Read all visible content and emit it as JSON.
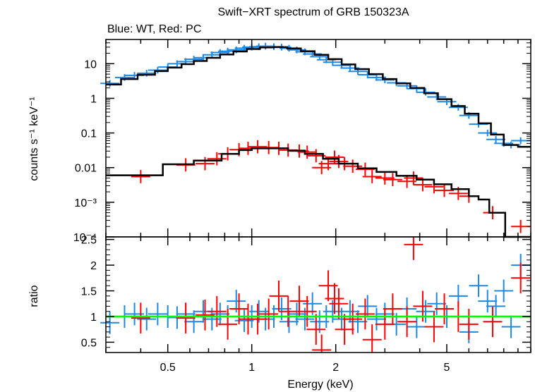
{
  "chart_data": {
    "type": "scatter",
    "title": "Swift−XRT spectrum of GRB 150323A",
    "subtitle": "Blue: WT, Red: PC",
    "xlabel": "Energy (keV)",
    "x_scale": "log",
    "xlim": [
      0.3,
      10.0
    ],
    "x_ticks": [
      {
        "v": 0.5,
        "label": "0.5"
      },
      {
        "v": 1,
        "label": "1"
      },
      {
        "v": 2,
        "label": "2"
      },
      {
        "v": 5,
        "label": "5"
      }
    ],
    "colors": {
      "wt": "#1e88e5",
      "pc": "#ff0000",
      "model": "#000000",
      "unity": "#00ff00"
    },
    "top_panel": {
      "ylabel": "counts s⁻¹ keV⁻¹",
      "y_scale": "log",
      "ylim": [
        0.0001,
        50
      ],
      "y_ticks": [
        {
          "v": 10,
          "label": "10"
        },
        {
          "v": 1,
          "label": "1"
        },
        {
          "v": 0.1,
          "label": "0.1"
        },
        {
          "v": 0.01,
          "label": "0.01"
        },
        {
          "v": 0.001,
          "label": "10⁻³"
        },
        {
          "v": 0.0001,
          "label": "10⁻⁴"
        }
      ],
      "series": [
        {
          "key": "wt",
          "points": [
            [
              0.31,
              2.7
            ],
            [
              0.35,
              4.0
            ],
            [
              0.38,
              4.6
            ],
            [
              0.42,
              5.3
            ],
            [
              0.46,
              6.5
            ],
            [
              0.5,
              8.0
            ],
            [
              0.54,
              10
            ],
            [
              0.58,
              11.5
            ],
            [
              0.62,
              13.5
            ],
            [
              0.67,
              15
            ],
            [
              0.72,
              18
            ],
            [
              0.77,
              21
            ],
            [
              0.82,
              23
            ],
            [
              0.88,
              25
            ],
            [
              0.94,
              28
            ],
            [
              1.0,
              30
            ],
            [
              1.06,
              31
            ],
            [
              1.12,
              32
            ],
            [
              1.2,
              31
            ],
            [
              1.28,
              30
            ],
            [
              1.36,
              28
            ],
            [
              1.45,
              25
            ],
            [
              1.55,
              22
            ],
            [
              1.65,
              19
            ],
            [
              1.75,
              16
            ],
            [
              1.85,
              13
            ],
            [
              1.95,
              11
            ],
            [
              2.1,
              9
            ],
            [
              2.25,
              7.5
            ],
            [
              2.4,
              6.0
            ],
            [
              2.6,
              4.8
            ],
            [
              2.8,
              4.0
            ],
            [
              3.0,
              3.4
            ],
            [
              3.3,
              2.8
            ],
            [
              3.6,
              2.3
            ],
            [
              3.9,
              1.9
            ],
            [
              4.2,
              1.5
            ],
            [
              4.6,
              1.1
            ],
            [
              5.0,
              0.8
            ],
            [
              5.5,
              0.55
            ],
            [
              6.0,
              0.32
            ],
            [
              6.5,
              0.18
            ],
            [
              7.0,
              0.1
            ],
            [
              7.5,
              0.065
            ],
            [
              8.0,
              0.05
            ],
            [
              8.5,
              0.045
            ],
            [
              9.2,
              0.06
            ]
          ]
        },
        {
          "key": "pc",
          "points": [
            [
              0.4,
              0.0055
            ],
            [
              0.58,
              0.012
            ],
            [
              0.68,
              0.013
            ],
            [
              0.75,
              0.018
            ],
            [
              0.82,
              0.025
            ],
            [
              0.9,
              0.033
            ],
            [
              0.97,
              0.036
            ],
            [
              1.05,
              0.04
            ],
            [
              1.15,
              0.038
            ],
            [
              1.25,
              0.036
            ],
            [
              1.35,
              0.032
            ],
            [
              1.48,
              0.03
            ],
            [
              1.58,
              0.028
            ],
            [
              1.7,
              0.022
            ],
            [
              1.78,
              0.01
            ],
            [
              1.88,
              0.013
            ],
            [
              1.98,
              0.02
            ],
            [
              2.05,
              0.015
            ],
            [
              2.15,
              0.013
            ],
            [
              2.3,
              0.011
            ],
            [
              2.55,
              0.009
            ],
            [
              2.7,
              0.0055
            ],
            [
              3.0,
              0.005
            ],
            [
              3.2,
              0.0045
            ],
            [
              3.6,
              0.004
            ],
            [
              3.8,
              0.005
            ],
            [
              4.1,
              0.0032
            ],
            [
              4.5,
              0.0028
            ],
            [
              4.9,
              0.0022
            ],
            [
              5.5,
              0.0018
            ],
            [
              6.0,
              0.0015
            ],
            [
              7.3,
              0.0005
            ],
            [
              9.2,
              0.0002
            ]
          ]
        }
      ],
      "models": [
        {
          "key": "wt",
          "steps": [
            [
              0.3,
              2.5
            ],
            [
              0.34,
              3.6
            ],
            [
              0.39,
              4.8
            ],
            [
              0.45,
              6.1
            ],
            [
              0.5,
              7.7
            ],
            [
              0.56,
              9.7
            ],
            [
              0.62,
              12.0
            ],
            [
              0.69,
              14.8
            ],
            [
              0.77,
              18.5
            ],
            [
              0.86,
              22.5
            ],
            [
              0.96,
              26.5
            ],
            [
              1.07,
              29.5
            ],
            [
              1.2,
              30.0
            ],
            [
              1.34,
              27.5
            ],
            [
              1.5,
              23.0
            ],
            [
              1.68,
              18.0
            ],
            [
              1.88,
              13.5
            ],
            [
              2.1,
              9.5
            ],
            [
              2.35,
              7.0
            ],
            [
              2.63,
              5.0
            ],
            [
              2.95,
              3.6
            ],
            [
              3.3,
              2.7
            ],
            [
              3.7,
              2.0
            ],
            [
              4.15,
              1.4
            ],
            [
              4.65,
              0.95
            ],
            [
              5.2,
              0.6
            ],
            [
              5.8,
              0.36
            ],
            [
              6.5,
              0.19
            ],
            [
              7.2,
              0.09
            ],
            [
              8.0,
              0.045
            ],
            [
              9.0,
              0.04
            ],
            [
              10.0,
              0.04
            ]
          ]
        },
        {
          "key": "pc",
          "steps": [
            [
              0.3,
              0.006
            ],
            [
              0.48,
              0.0125
            ],
            [
              0.62,
              0.016
            ],
            [
              0.78,
              0.025
            ],
            [
              0.9,
              0.032
            ],
            [
              1.0,
              0.036
            ],
            [
              1.15,
              0.036
            ],
            [
              1.35,
              0.031
            ],
            [
              1.55,
              0.025
            ],
            [
              1.8,
              0.018
            ],
            [
              2.05,
              0.013
            ],
            [
              2.4,
              0.0095
            ],
            [
              2.8,
              0.0075
            ],
            [
              3.3,
              0.0058
            ],
            [
              3.9,
              0.0045
            ],
            [
              4.5,
              0.0033
            ],
            [
              5.2,
              0.0024
            ],
            [
              6.0,
              0.0015
            ],
            [
              6.5,
              0.0012
            ],
            [
              7.1,
              0.0005
            ],
            [
              8.1,
              0.0001
            ],
            [
              10.0,
              0.0001
            ]
          ]
        }
      ]
    },
    "bottom_panel": {
      "ylabel": "ratio",
      "y_scale": "linear",
      "ylim": [
        0.3,
        2.55
      ],
      "y_ticks": [
        {
          "v": 0.5,
          "label": "0.5"
        },
        {
          "v": 1,
          "label": "1"
        },
        {
          "v": 1.5,
          "label": "1.5"
        },
        {
          "v": 2,
          "label": "2"
        },
        {
          "v": 2.5,
          "label": "2.5"
        }
      ],
      "reference_line": 1.0,
      "series": [
        {
          "key": "wt",
          "points": [
            [
              0.31,
              0.88
            ],
            [
              0.35,
              1.0
            ],
            [
              0.38,
              1.05
            ],
            [
              0.42,
              0.95
            ],
            [
              0.46,
              1.05
            ],
            [
              0.5,
              1.0
            ],
            [
              0.54,
              0.98
            ],
            [
              0.58,
              1.05
            ],
            [
              0.62,
              0.9
            ],
            [
              0.67,
              1.1
            ],
            [
              0.72,
              0.95
            ],
            [
              0.77,
              1.05
            ],
            [
              0.82,
              1.0
            ],
            [
              0.88,
              1.3
            ],
            [
              0.94,
              0.92
            ],
            [
              1.0,
              1.0
            ],
            [
              1.06,
              1.1
            ],
            [
              1.12,
              0.95
            ],
            [
              1.2,
              1.0
            ],
            [
              1.28,
              1.15
            ],
            [
              1.36,
              0.9
            ],
            [
              1.45,
              1.05
            ],
            [
              1.55,
              0.95
            ],
            [
              1.65,
              1.25
            ],
            [
              1.75,
              0.9
            ],
            [
              1.85,
              1.0
            ],
            [
              1.95,
              1.1
            ],
            [
              2.1,
              0.95
            ],
            [
              2.25,
              1.1
            ],
            [
              2.4,
              0.9
            ],
            [
              2.6,
              1.2
            ],
            [
              2.8,
              0.95
            ],
            [
              3.0,
              1.05
            ],
            [
              3.3,
              0.85
            ],
            [
              3.6,
              1.15
            ],
            [
              3.9,
              0.8
            ],
            [
              4.2,
              1.1
            ],
            [
              4.6,
              1.25
            ],
            [
              5.0,
              1.0
            ],
            [
              5.5,
              1.4
            ],
            [
              6.0,
              0.7
            ],
            [
              6.5,
              1.6
            ],
            [
              7.0,
              1.3
            ],
            [
              7.5,
              1.2
            ],
            [
              8.0,
              1.5
            ],
            [
              8.5,
              0.8
            ],
            [
              9.2,
              2.0
            ]
          ]
        },
        {
          "key": "pc",
          "points": [
            [
              0.4,
              0.97
            ],
            [
              0.58,
              0.97
            ],
            [
              0.68,
              1.03
            ],
            [
              0.75,
              1.1
            ],
            [
              0.82,
              0.85
            ],
            [
              0.9,
              1.15
            ],
            [
              0.97,
              0.95
            ],
            [
              1.05,
              0.95
            ],
            [
              1.15,
              1.05
            ],
            [
              1.25,
              1.4
            ],
            [
              1.35,
              1.1
            ],
            [
              1.48,
              1.3
            ],
            [
              1.58,
              1.1
            ],
            [
              1.7,
              0.75
            ],
            [
              1.78,
              0.35
            ],
            [
              1.88,
              1.6
            ],
            [
              1.98,
              1.35
            ],
            [
              2.05,
              1.25
            ],
            [
              2.15,
              0.75
            ],
            [
              2.3,
              0.95
            ],
            [
              2.55,
              1.05
            ],
            [
              2.7,
              0.55
            ],
            [
              3.0,
              0.85
            ],
            [
              3.2,
              1.15
            ],
            [
              3.6,
              0.9
            ],
            [
              3.8,
              2.4
            ],
            [
              4.1,
              1.2
            ],
            [
              4.5,
              0.8
            ],
            [
              4.9,
              1.15
            ],
            [
              5.5,
              1.0
            ],
            [
              6.0,
              0.85
            ],
            [
              7.3,
              0.9
            ],
            [
              9.2,
              1.75
            ]
          ]
        }
      ]
    }
  }
}
